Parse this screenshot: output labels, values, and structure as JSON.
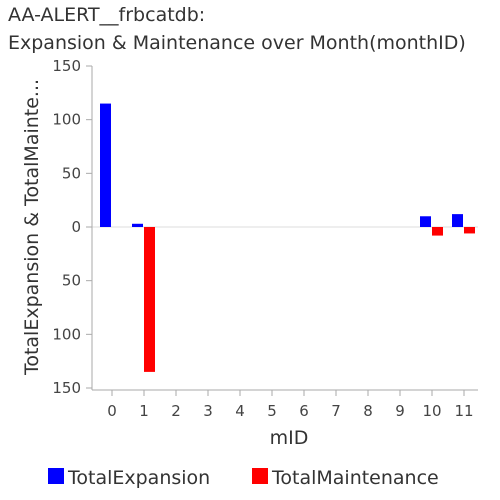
{
  "chart_data": {
    "type": "bar",
    "title_lines": [
      "AA-ALERT__frbcatdb:",
      "Expansion & Maintenance over Month(monthID)"
    ],
    "xlabel": "mID",
    "ylabel": "TotalExpansion & TotalMainte...",
    "categories": [
      "0",
      "1",
      "2",
      "3",
      "4",
      "5",
      "6",
      "7",
      "8",
      "9",
      "10",
      "11"
    ],
    "ylim": [
      -150,
      150
    ],
    "yticks": [
      150,
      100,
      50,
      0,
      -50,
      -100,
      -150
    ],
    "ytick_labels": [
      "150",
      "100",
      "50",
      "0",
      "50",
      "100",
      "150"
    ],
    "grid": false,
    "legend_position": "bottom",
    "series": [
      {
        "name": "TotalExpansion",
        "color": "#0000ff",
        "values": [
          115,
          3,
          0,
          0,
          0,
          0,
          0,
          0,
          0,
          0,
          10,
          12
        ]
      },
      {
        "name": "TotalMaintenance",
        "color": "#ff0000",
        "values": [
          0,
          -135,
          0,
          0,
          0,
          0,
          0,
          0,
          0,
          0,
          -8,
          -6
        ]
      }
    ]
  }
}
